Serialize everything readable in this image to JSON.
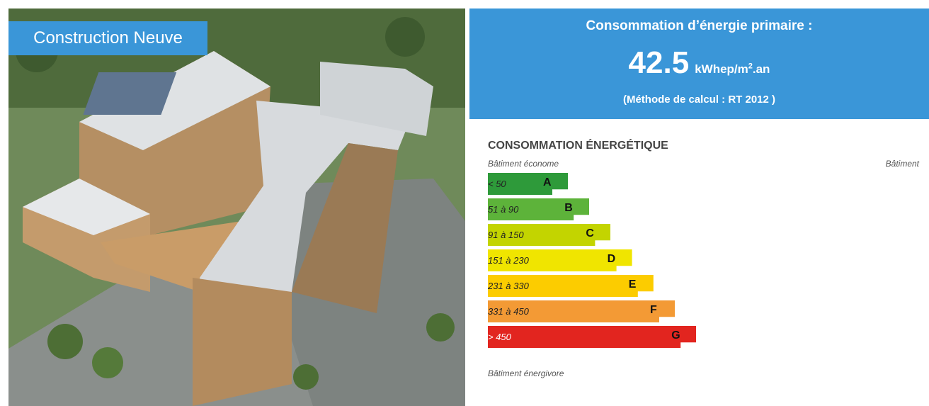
{
  "image": {
    "caption": "Construction Neuve"
  },
  "header": {
    "title": "Consommation d’énergie primaire :",
    "value": "42.5",
    "unit": "kWhep/m",
    "unit_sup": "2",
    "unit_suffix": ".an",
    "method": "(Méthode de calcul : RT 2012 )"
  },
  "label": {
    "title": "CONSOMMATION ÉNERGÉTIQUE",
    "top_left": "Bâtiment économe",
    "top_right": "Bâtiment",
    "bottom": "Bâtiment énergivore",
    "classes": [
      {
        "range": "< 50",
        "letter": "A",
        "color": "#2e9a3a"
      },
      {
        "range": "51 à 90",
        "letter": "B",
        "color": "#5db33a"
      },
      {
        "range": "91 à 150",
        "letter": "C",
        "color": "#c3d400"
      },
      {
        "range": "151 à 230",
        "letter": "D",
        "color": "#f0e500"
      },
      {
        "range": "231 à 330",
        "letter": "E",
        "color": "#fccc00"
      },
      {
        "range": "331 à 450",
        "letter": "F",
        "color": "#f39a35"
      },
      {
        "range": "> 450",
        "letter": "G",
        "color": "#e2251f"
      }
    ]
  }
}
